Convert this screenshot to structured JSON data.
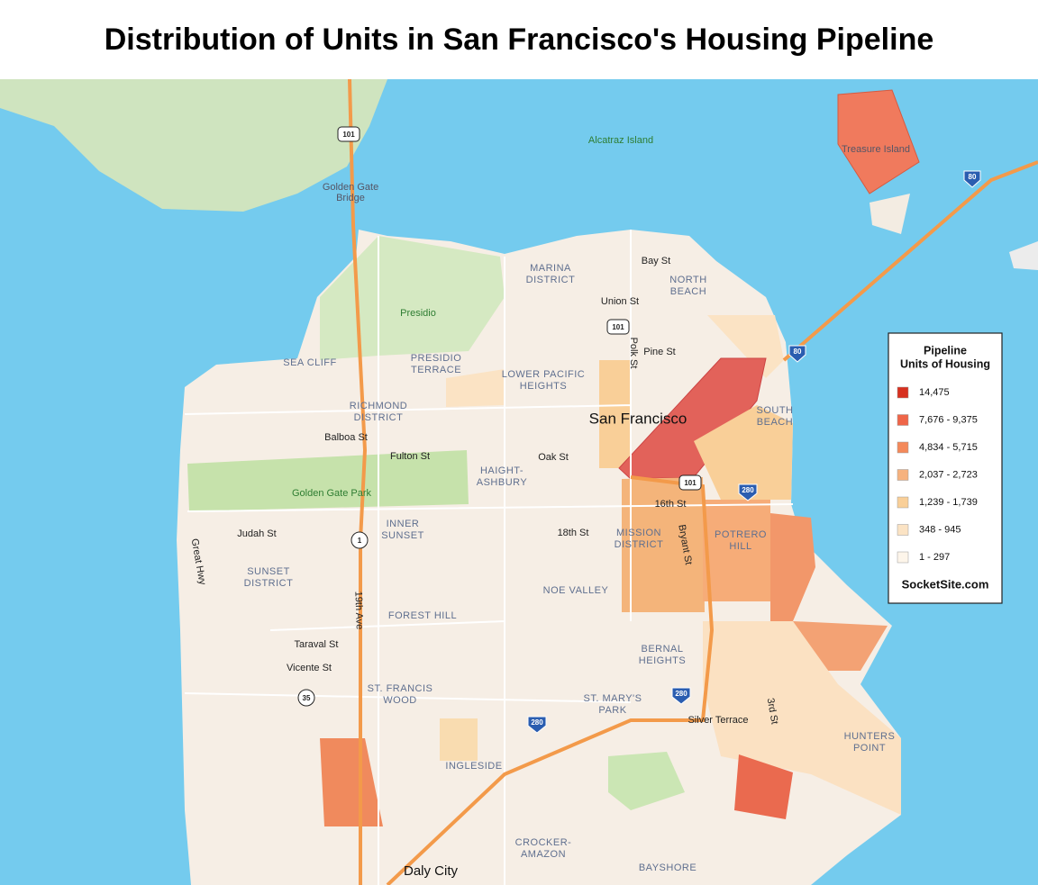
{
  "title": "Distribution of Units in San Francisco's Housing Pipeline",
  "neighborhoods": [
    [
      "MARINA",
      "DISTRICT"
    ],
    [
      "NORTH",
      "BEACH"
    ],
    [
      "PRESIDIO",
      "TERRACE"
    ],
    [
      "LOWER PACIFIC",
      "HEIGHTS"
    ],
    [
      "RICHMOND",
      "DISTRICT"
    ],
    [
      "SEA CLIFF"
    ],
    [
      "SOUTH",
      "BEACH"
    ],
    [
      "HAIGHT-",
      "ASHBURY"
    ],
    [
      "INNER",
      "SUNSET"
    ],
    [
      "MISSION",
      "DISTRICT"
    ],
    [
      "POTRERO",
      "HILL"
    ],
    [
      "SUNSET",
      "DISTRICT"
    ],
    [
      "NOE VALLEY"
    ],
    [
      "FOREST HILL"
    ],
    [
      "BERNAL",
      "HEIGHTS"
    ],
    [
      "ST. FRANCIS",
      "WOOD"
    ],
    [
      "ST. MARY'S",
      "PARK"
    ],
    [
      "HUNTERS",
      "POINT"
    ],
    [
      "INGLESIDE"
    ],
    [
      "CROCKER-",
      "AMAZON"
    ],
    [
      "BAYSHORE"
    ]
  ],
  "places": [
    [
      "Presidio"
    ],
    [
      "Golden Gate Park"
    ],
    [
      "Alcatraz Island"
    ],
    [
      "Golden Gate",
      "Bridge"
    ],
    [
      "Treasure Island"
    ]
  ],
  "streets": [
    "Bay St",
    "Union St",
    "Pine St",
    "Polk St",
    "Balboa St",
    "Fulton St",
    "Oak St",
    "16th St",
    "18th St",
    "Bryant St",
    "Judah St",
    "Great Hwy",
    "19th Ave",
    "Taraval St",
    "Vicente St",
    "Silver Terrace",
    "3rd St"
  ],
  "cities": [
    "San Francisco",
    "Daly City"
  ],
  "shields": [
    "101",
    "101",
    "101",
    "1",
    "35",
    "80",
    "80",
    "280",
    "280",
    "280"
  ],
  "legend": {
    "title": [
      "Pipeline",
      "Units of Housing"
    ],
    "items": [
      {
        "label": "14,475",
        "color": "#d7301f"
      },
      {
        "label": "7,676 - 9,375",
        "color": "#ef6548"
      },
      {
        "label": "4,834 - 5,715",
        "color": "#f4895a"
      },
      {
        "label": "2,037 - 2,723",
        "color": "#f6b27e"
      },
      {
        "label": "1,239 - 1,739",
        "color": "#f9cf98"
      },
      {
        "label": "348 - 945",
        "color": "#fbe3c4"
      },
      {
        "label": "1 - 297",
        "color": "#fdf5ea"
      }
    ],
    "source": "SocketSite.com"
  }
}
